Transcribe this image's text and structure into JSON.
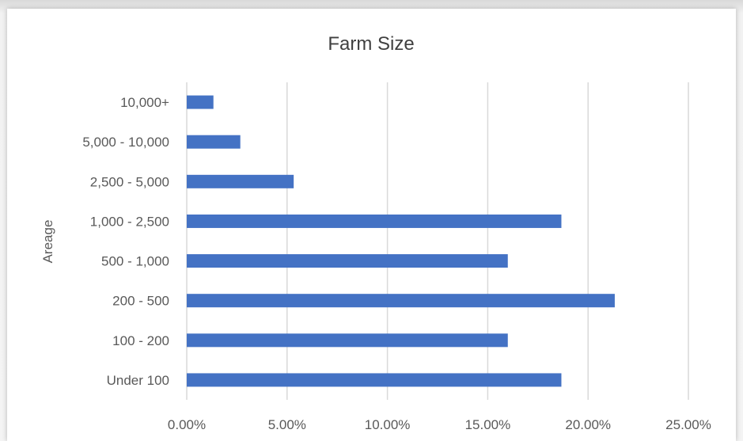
{
  "chart_data": {
    "type": "bar",
    "orientation": "horizontal",
    "title": "Farm Size",
    "ylabel": "Areage",
    "xlabel": "",
    "categories": [
      "Under 100",
      "100 - 200",
      "200 - 500",
      "500 - 1,000",
      "1,000 - 2,500",
      "2,500 - 5,000",
      "5,000 - 10,000",
      "10,000+"
    ],
    "values": [
      0.1867,
      0.16,
      0.2133,
      0.16,
      0.1867,
      0.0533,
      0.0267,
      0.0133
    ],
    "xlim": [
      0,
      0.25
    ],
    "xticks": [
      0,
      0.05,
      0.1,
      0.15,
      0.2,
      0.25
    ],
    "xtick_labels": [
      "0.00%",
      "5.00%",
      "10.00%",
      "15.00%",
      "20.00%",
      "25.00%"
    ],
    "grid": "vertical",
    "legend": "none",
    "colors": {
      "bar": "#4472c4",
      "grid": "#d9d9d9",
      "text": "#595959",
      "title": "#404040"
    }
  }
}
